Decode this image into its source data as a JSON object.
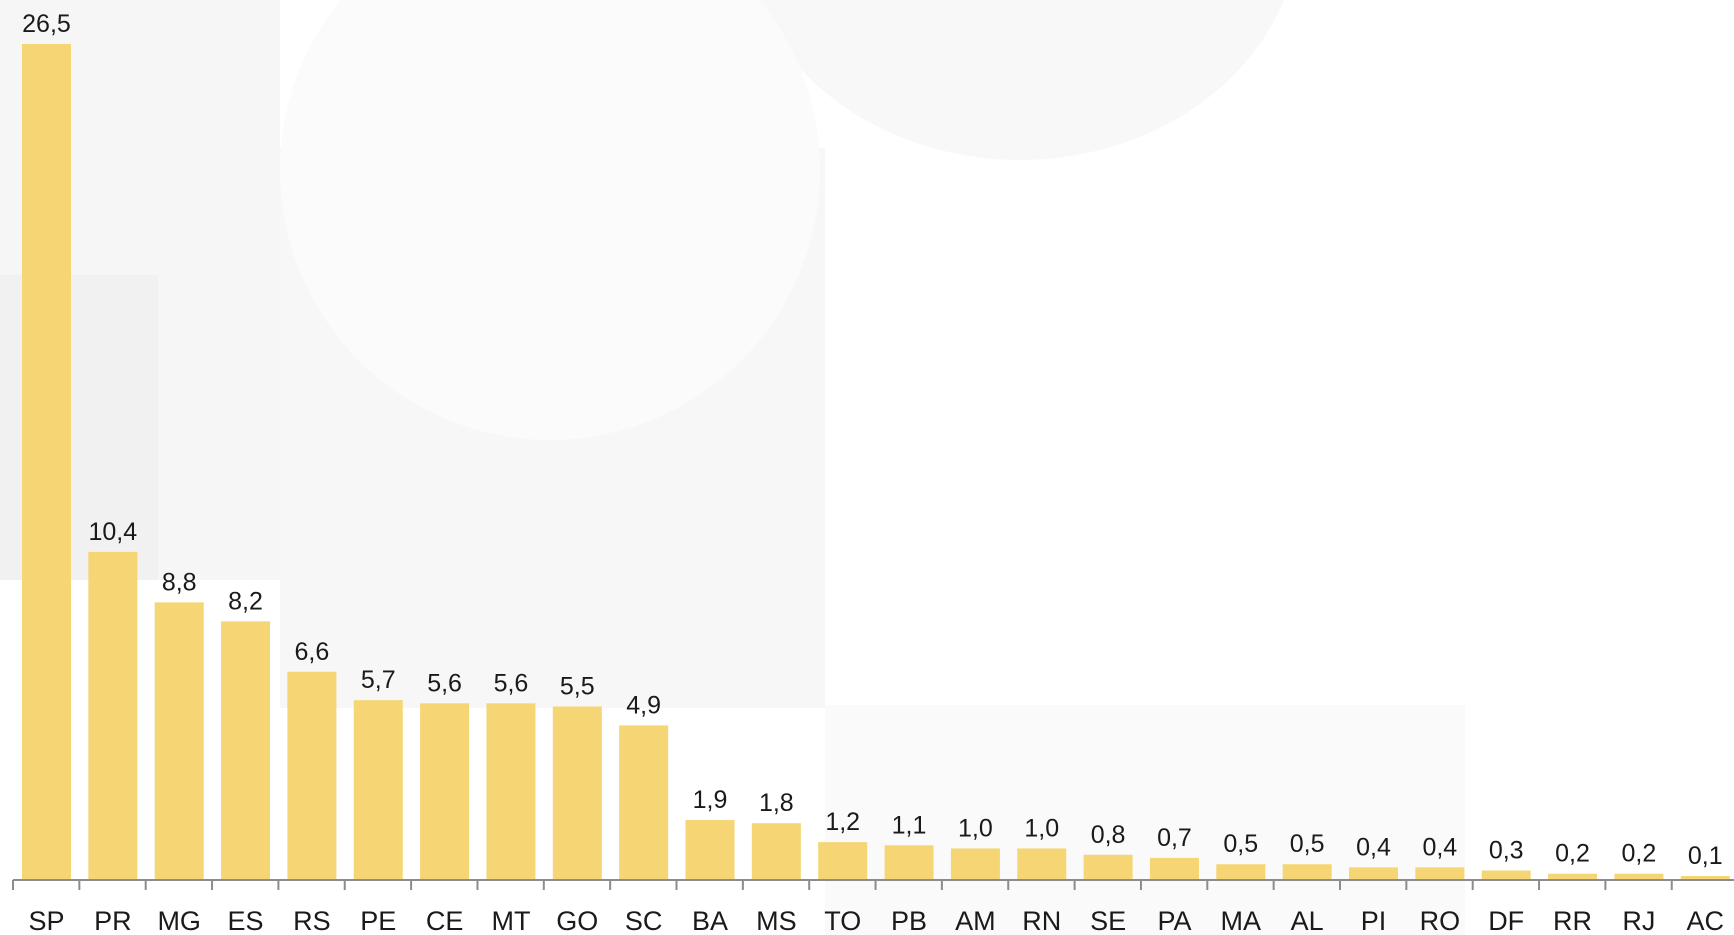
{
  "chart_data": {
    "type": "bar",
    "categories": [
      "SP",
      "PR",
      "MG",
      "ES",
      "RS",
      "PE",
      "CE",
      "MT",
      "GO",
      "SC",
      "BA",
      "MS",
      "TO",
      "PB",
      "AM",
      "RN",
      "SE",
      "PA",
      "MA",
      "AL",
      "PI",
      "RO",
      "DF",
      "RR",
      "RJ",
      "AC"
    ],
    "values": [
      26.5,
      10.4,
      8.8,
      8.2,
      6.6,
      5.7,
      5.6,
      5.6,
      5.5,
      4.9,
      1.9,
      1.8,
      1.2,
      1.1,
      1.0,
      1.0,
      0.8,
      0.7,
      0.5,
      0.5,
      0.4,
      0.4,
      0.3,
      0.2,
      0.2,
      0.1
    ],
    "value_labels": [
      "26,5",
      "10,4",
      "8,8",
      "8,2",
      "6,6",
      "5,7",
      "5,6",
      "5,6",
      "5,5",
      "4,9",
      "1,9",
      "1,8",
      "1,2",
      "1,1",
      "1,0",
      "1,0",
      "0,8",
      "0,7",
      "0,5",
      "0,5",
      "0,4",
      "0,4",
      "0,3",
      "0,2",
      "0,2",
      "0,1"
    ],
    "title": "",
    "xlabel": "",
    "ylabel": "",
    "ylim": [
      0,
      26.5
    ],
    "grid": false,
    "colors": {
      "bar": "#f5d574",
      "axis": "#8c8c8c",
      "text": "#1a1a1a"
    }
  }
}
